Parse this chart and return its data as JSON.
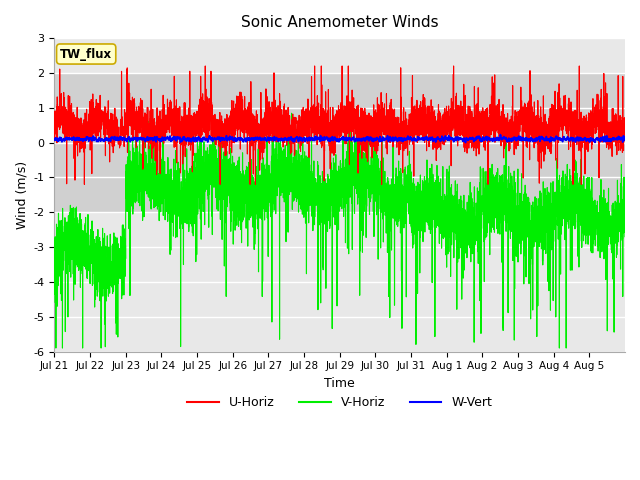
{
  "title": "Sonic Anemometer Winds",
  "xlabel": "Time",
  "ylabel": "Wind (m/s)",
  "ylim": [
    -6.0,
    3.0
  ],
  "yticks": [
    -6.0,
    -5.0,
    -4.0,
    -3.0,
    -2.0,
    -1.0,
    0.0,
    1.0,
    2.0,
    3.0
  ],
  "background_color": "#ffffff",
  "plot_bg_color": "#e8e8e8",
  "grid_color": "#ffffff",
  "label_annotation": "TW_flux",
  "label_annotation_bg": "#ffffcc",
  "label_annotation_border": "#ccaa00",
  "tick_labels": [
    "Jul 21",
    "Jul 22",
    "Jul 23",
    "Jul 24",
    "Jul 25",
    "Jul 26",
    "Jul 27",
    "Jul 28",
    "Jul 29",
    "Jul 30",
    "Jul 31",
    "Aug 1",
    "Aug 2",
    "Aug 3",
    "Aug 4",
    "Aug 5"
  ],
  "series": {
    "U_Horiz": {
      "color": "#ff0000",
      "label": "U-Horiz",
      "lw": 0.8
    },
    "V_Horiz": {
      "color": "#00ee00",
      "label": "V-Horiz",
      "lw": 0.8
    },
    "W_Vert": {
      "color": "#0000ff",
      "label": "W-Vert",
      "lw": 1.2
    }
  },
  "shaded_band": [
    -2.0,
    2.0
  ],
  "shaded_band_color": "#d0d0d0"
}
